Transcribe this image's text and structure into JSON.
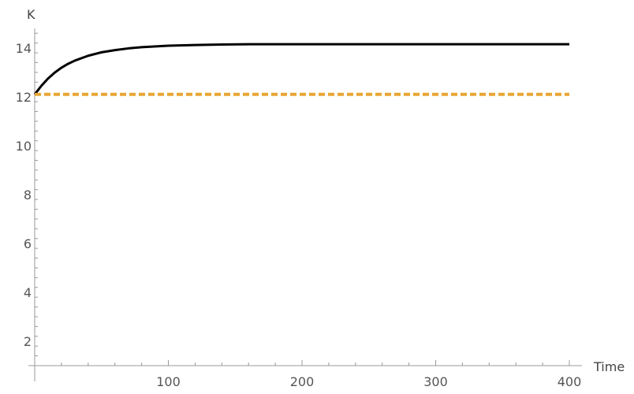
{
  "chart_data": {
    "type": "line",
    "title": "",
    "xlabel": "Time",
    "ylabel": "K",
    "xlim": [
      0,
      400
    ],
    "ylim": [
      1,
      14.8
    ],
    "x_ticks": [
      100,
      200,
      300,
      400
    ],
    "y_ticks": [
      2,
      4,
      6,
      8,
      10,
      12,
      14
    ],
    "grid": false,
    "legend": "none",
    "series": [
      {
        "color": "#000000",
        "style": "solid",
        "x": [
          0,
          2,
          5,
          10,
          15,
          20,
          25,
          30,
          40,
          50,
          60,
          70,
          80,
          100,
          120,
          140,
          160,
          200,
          250,
          300,
          350,
          400
        ],
        "y": [
          12.1,
          12.24,
          12.45,
          12.75,
          12.99,
          13.19,
          13.35,
          13.48,
          13.68,
          13.82,
          13.91,
          13.98,
          14.03,
          14.09,
          14.12,
          14.14,
          14.15,
          14.15,
          14.15,
          14.15,
          14.15,
          14.15
        ]
      },
      {
        "color": "#E8A534",
        "style": "dashed",
        "x": [
          0,
          400
        ],
        "y": [
          12.1,
          12.1
        ]
      }
    ]
  }
}
